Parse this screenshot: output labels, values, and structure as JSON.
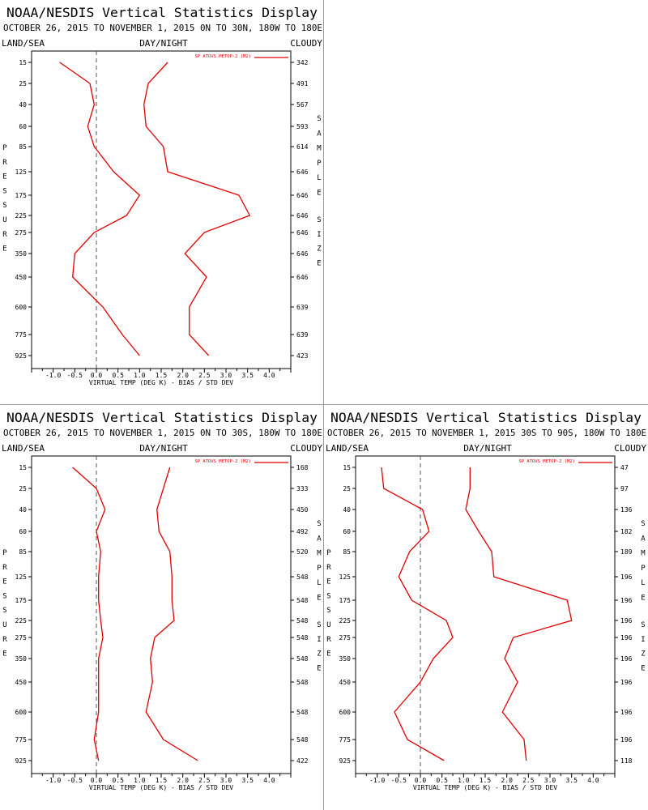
{
  "header": {
    "title": "NOAA/NESDIS Vertical Statistics Display",
    "period": "OCTOBER 26, 2015 TO NOVEMBER 1, 2015",
    "land_sea": "LAND/SEA",
    "day_night": "DAY/NIGHT",
    "cloudy": "CLOUDY"
  },
  "axis_titles": {
    "pressure_letters": [
      "P",
      "R",
      "E",
      "S",
      "S",
      "U",
      "R",
      "E"
    ],
    "sample_letters": [
      "S",
      "A",
      "M",
      "P",
      "L",
      "E"
    ],
    "size_letters": [
      "S",
      "I",
      "Z",
      "E"
    ]
  },
  "chart_data": [
    {
      "type": "line",
      "region": "0N TO 30N, 180W TO 180E",
      "legend": "SP ATOVS METOP-2 (M2)",
      "xlabel": "VIRTUAL TEMP (DEG K) - BIAS / STD DEV",
      "xlim": [
        -1.5,
        4.5
      ],
      "xticks": [
        "-1.0",
        "-0.5",
        "0.0",
        "0.5",
        "1.0",
        "1.5",
        "2.0",
        "2.5",
        "3.0",
        "3.5",
        "4.0"
      ],
      "xtick_values": [
        -1.0,
        -0.5,
        0.0,
        0.5,
        1.0,
        1.5,
        2.0,
        2.5,
        3.0,
        3.5,
        4.0
      ],
      "pressure_levels": [
        15,
        25,
        40,
        60,
        85,
        125,
        175,
        225,
        275,
        350,
        450,
        600,
        775,
        925
      ],
      "sample_size": [
        342,
        491,
        567,
        593,
        614,
        646,
        646,
        646,
        646,
        646,
        646,
        639,
        639,
        423
      ],
      "series": [
        {
          "name": "bias",
          "values": [
            -0.85,
            -0.15,
            -0.05,
            -0.2,
            -0.05,
            0.4,
            1.0,
            0.7,
            -0.05,
            -0.5,
            -0.55,
            0.15,
            0.6,
            1.0
          ]
        },
        {
          "name": "std_dev",
          "values": [
            1.65,
            1.2,
            1.1,
            1.15,
            1.55,
            1.65,
            3.3,
            3.55,
            2.5,
            2.05,
            2.55,
            2.15,
            2.15,
            2.6
          ]
        }
      ]
    },
    {
      "type": "line",
      "region": "0N TO 30S, 180W TO 180E",
      "legend": "SP ATOVS METOP-2 (M2)",
      "xlabel": "VIRTUAL TEMP (DEG K) - BIAS / STD DEV",
      "xlim": [
        -1.5,
        4.5
      ],
      "xticks": [
        "-1.0",
        "-0.5",
        "0.0",
        "0.5",
        "1.0",
        "1.5",
        "2.0",
        "2.5",
        "3.0",
        "3.5",
        "4.0"
      ],
      "xtick_values": [
        -1.0,
        -0.5,
        0.0,
        0.5,
        1.0,
        1.5,
        2.0,
        2.5,
        3.0,
        3.5,
        4.0
      ],
      "pressure_levels": [
        15,
        25,
        40,
        60,
        85,
        125,
        175,
        225,
        275,
        350,
        450,
        600,
        775,
        925
      ],
      "sample_size": [
        168,
        333,
        450,
        492,
        520,
        548,
        548,
        548,
        548,
        548,
        548,
        548,
        548,
        422
      ],
      "series": [
        {
          "name": "bias",
          "values": [
            -0.55,
            0.0,
            0.2,
            0.0,
            0.1,
            0.05,
            0.05,
            0.1,
            0.15,
            0.05,
            0.05,
            0.05,
            -0.05,
            0.05
          ]
        },
        {
          "name": "std_dev",
          "values": [
            1.7,
            1.55,
            1.4,
            1.45,
            1.7,
            1.75,
            1.75,
            1.8,
            1.35,
            1.25,
            1.3,
            1.15,
            1.55,
            2.35
          ]
        }
      ]
    },
    {
      "type": "line",
      "region": "30S TO 90S, 180W TO 180E",
      "legend": "SP ATOVS METOP-2 (M2)",
      "xlabel": "VIRTUAL TEMP (DEG K) - BIAS / STD DEV",
      "xlim": [
        -1.5,
        4.5
      ],
      "xticks": [
        "-1.0",
        "-0.5",
        "0.0",
        "0.5",
        "1.0",
        "1.5",
        "2.0",
        "2.5",
        "3.0",
        "3.5",
        "4.0"
      ],
      "xtick_values": [
        -1.0,
        -0.5,
        0.0,
        0.5,
        1.0,
        1.5,
        2.0,
        2.5,
        3.0,
        3.5,
        4.0
      ],
      "pressure_levels": [
        15,
        25,
        40,
        60,
        85,
        125,
        175,
        225,
        275,
        350,
        450,
        600,
        775,
        925
      ],
      "sample_size": [
        47,
        97,
        136,
        182,
        189,
        196,
        196,
        196,
        196,
        196,
        196,
        196,
        196,
        118
      ],
      "series": [
        {
          "name": "bias",
          "values": [
            -0.9,
            -0.85,
            0.05,
            0.2,
            -0.25,
            -0.5,
            -0.2,
            0.6,
            0.75,
            0.3,
            0.0,
            -0.6,
            -0.3,
            0.55
          ]
        },
        {
          "name": "std_dev",
          "values": [
            1.15,
            1.15,
            1.05,
            1.35,
            1.65,
            1.7,
            3.4,
            3.5,
            2.15,
            1.95,
            2.25,
            1.9,
            2.4,
            2.45
          ]
        }
      ]
    }
  ],
  "colors": {
    "series": "#e00000",
    "axis": "#000000",
    "zero_line": "#555555",
    "divider": "#9a9a9a"
  }
}
